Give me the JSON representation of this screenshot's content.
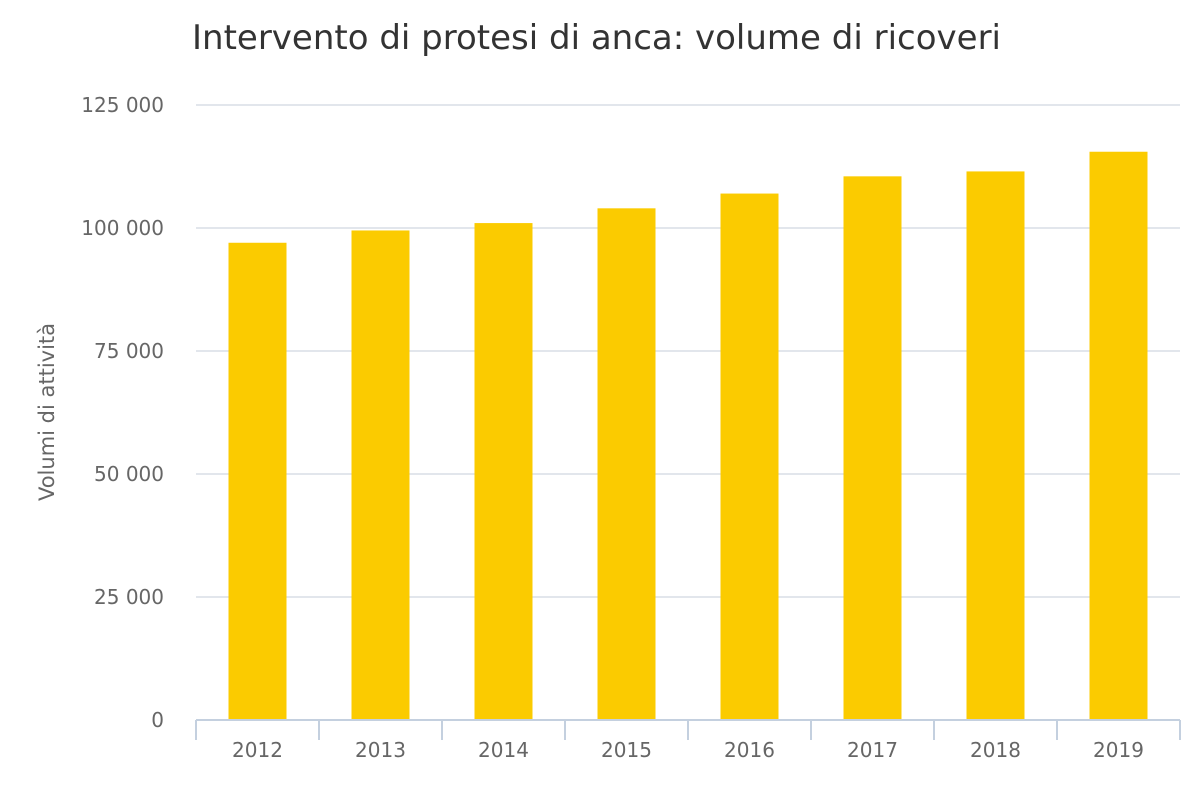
{
  "colors": {
    "bar": "#fbcb00",
    "grid": "#d8dde6",
    "axis": "#c4d0df",
    "title": "#333333",
    "label": "#666666"
  },
  "chart_data": {
    "type": "bar",
    "title": "Intervento di protesi di anca: volume di ricoveri",
    "xlabel": "",
    "ylabel": "Volumi di attività",
    "categories": [
      "2012",
      "2013",
      "2014",
      "2015",
      "2016",
      "2017",
      "2018",
      "2019"
    ],
    "values": [
      97000,
      99500,
      101000,
      104000,
      107000,
      110500,
      111500,
      115500
    ],
    "ylim": [
      0,
      125000
    ],
    "yticks": [
      0,
      25000,
      50000,
      75000,
      100000,
      125000
    ],
    "ytick_labels": [
      "0",
      "25 000",
      "50 000",
      "75 000",
      "100 000",
      "125 000"
    ],
    "grid": true,
    "legend": "none"
  }
}
